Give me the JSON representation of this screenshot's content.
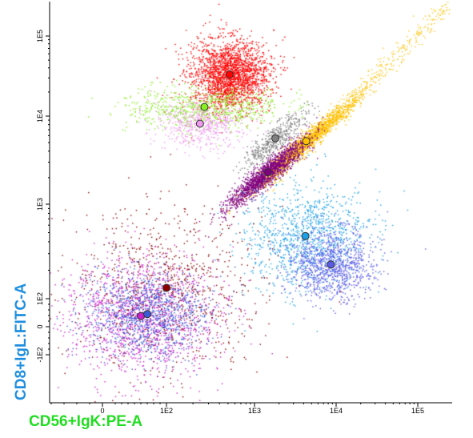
{
  "chart_data": {
    "type": "scatter",
    "title": "",
    "xlabel": "CD56+IgK:PE-A",
    "ylabel": "CD8+IgL:FITC-A",
    "xlabel_color": "#22dd22",
    "ylabel_color": "#1e8fe0",
    "x_scale": "biexponential",
    "y_scale": "biexponential",
    "x_ticks": [
      "0",
      "1E2",
      "1E3",
      "1E4",
      "1E5"
    ],
    "y_ticks": [
      "-1E2",
      "0",
      "1E2",
      "1E3",
      "1E4",
      "1E5"
    ],
    "populations": [
      {
        "color": "#ff0000",
        "center": {
          "x": 520,
          "y": 33000
        },
        "spread": [
          0.22,
          0.2
        ],
        "density": 1.0
      },
      {
        "color": "#88ee22",
        "center": {
          "x": 270,
          "y": 13000
        },
        "spread": [
          0.45,
          0.12
        ],
        "density": 0.35
      },
      {
        "color": "#ee99ee",
        "center": {
          "x": 240,
          "y": 8200
        },
        "spread": [
          0.25,
          0.14
        ],
        "density": 0.25
      },
      {
        "color": "#808080",
        "center": {
          "x": 1800,
          "y": 5600
        },
        "spread": [
          0.18,
          0.14
        ],
        "density": 0.2
      },
      {
        "color": "#ffc000",
        "center": {
          "x": 4300,
          "y": 5200
        },
        "spread": [
          0.3,
          0.1
        ],
        "density": 0.7
      },
      {
        "color": "#800080",
        "center": {
          "x": 1450,
          "y": 2300
        },
        "spread": [
          0.22,
          0.13
        ],
        "density": 0.8
      },
      {
        "color": "#1ea0e6",
        "center": {
          "x": 4200,
          "y": 460
        },
        "spread": [
          0.35,
          0.3
        ],
        "density": 0.5
      },
      {
        "color": "#5a5ae6",
        "center": {
          "x": 8600,
          "y": 230
        },
        "spread": [
          0.25,
          0.2
        ],
        "density": 0.45
      },
      {
        "color": "#8b0000",
        "center": {
          "x": 100,
          "y": 130
        },
        "spread": [
          0.55,
          0.45
        ],
        "density": 0.4
      },
      {
        "color": "#cc22cc",
        "center": {
          "x": 60,
          "y": 38
        },
        "spread": [
          0.45,
          0.35
        ],
        "density": 0.6
      },
      {
        "color": "#3a5ad8",
        "center": {
          "x": 70,
          "y": 45
        },
        "spread": [
          0.35,
          0.25
        ],
        "density": 0.45
      }
    ],
    "centroids": [
      {
        "x": 520,
        "y": 33000,
        "color": "#ff0000"
      },
      {
        "x": 270,
        "y": 13000,
        "color": "#88ee22"
      },
      {
        "x": 240,
        "y": 8200,
        "color": "#ee99ee"
      },
      {
        "x": 1800,
        "y": 5600,
        "color": "#808080"
      },
      {
        "x": 4300,
        "y": 5200,
        "color": "#ffc000"
      },
      {
        "x": 1450,
        "y": 2300,
        "color": "#800080"
      },
      {
        "x": 4200,
        "y": 460,
        "color": "#1ea0e6"
      },
      {
        "x": 8600,
        "y": 230,
        "color": "#5a5ae6"
      },
      {
        "x": 100,
        "y": 130,
        "color": "#8b0000"
      },
      {
        "x": 60,
        "y": 38,
        "color": "#cc22cc"
      },
      {
        "x": 70,
        "y": 45,
        "color": "#3a5ad8"
      }
    ]
  }
}
